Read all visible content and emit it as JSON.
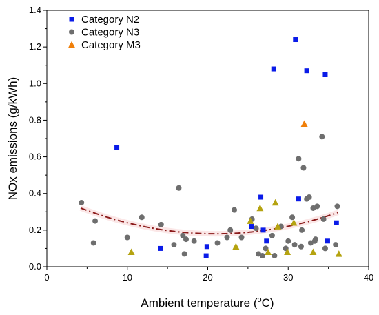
{
  "chart_data": {
    "type": "scatter",
    "xlabel": "Ambient temperature (",
    "xlabel_sup": "o",
    "xlabel_unit": "C)",
    "ylabel": "NOx emissions (g/kWh)",
    "xlim": [
      0,
      40
    ],
    "ylim": [
      0,
      1.4
    ],
    "x_ticks": [
      "0",
      "10",
      "20",
      "30",
      "40"
    ],
    "y_ticks": [
      "0.0",
      "0.2",
      "0.4",
      "0.6",
      "0.8",
      "1.0",
      "1.2",
      "1.4"
    ],
    "grid": false,
    "legend_position": "top-left",
    "series": [
      {
        "name": "Category N2",
        "marker": "square",
        "color": "#0a1be8",
        "points": [
          [
            8.7,
            0.65
          ],
          [
            14.1,
            0.1
          ],
          [
            19.8,
            0.06
          ],
          [
            19.9,
            0.11
          ],
          [
            25.4,
            0.22
          ],
          [
            26.6,
            0.38
          ],
          [
            26.9,
            0.2
          ],
          [
            27.3,
            0.14
          ],
          [
            28.2,
            1.08
          ],
          [
            30.9,
            1.24
          ],
          [
            31.3,
            0.37
          ],
          [
            32.3,
            1.07
          ],
          [
            34.6,
            1.05
          ],
          [
            34.9,
            0.14
          ],
          [
            36.0,
            0.24
          ]
        ]
      },
      {
        "name": "Category N3",
        "marker": "circle",
        "color": "#6e6e6e",
        "points": [
          [
            4.3,
            0.35
          ],
          [
            5.8,
            0.13
          ],
          [
            6.0,
            0.25
          ],
          [
            10.0,
            0.16
          ],
          [
            11.8,
            0.27
          ],
          [
            14.2,
            0.23
          ],
          [
            15.8,
            0.12
          ],
          [
            16.4,
            0.43
          ],
          [
            16.9,
            0.17
          ],
          [
            17.1,
            0.07
          ],
          [
            17.3,
            0.15
          ],
          [
            18.3,
            0.14
          ],
          [
            21.2,
            0.13
          ],
          [
            22.4,
            0.16
          ],
          [
            22.8,
            0.2
          ],
          [
            23.3,
            0.31
          ],
          [
            24.2,
            0.16
          ],
          [
            25.5,
            0.26
          ],
          [
            26.0,
            0.21
          ],
          [
            26.3,
            0.07
          ],
          [
            26.8,
            0.06
          ],
          [
            27.2,
            0.1
          ],
          [
            28.0,
            0.17
          ],
          [
            28.3,
            0.06
          ],
          [
            29.1,
            0.22
          ],
          [
            29.7,
            0.1
          ],
          [
            30.0,
            0.14
          ],
          [
            30.5,
            0.27
          ],
          [
            30.8,
            0.12
          ],
          [
            31.3,
            0.59
          ],
          [
            31.6,
            0.11
          ],
          [
            31.7,
            0.2
          ],
          [
            31.9,
            0.54
          ],
          [
            32.3,
            0.37
          ],
          [
            32.6,
            0.38
          ],
          [
            32.8,
            0.13
          ],
          [
            33.1,
            0.32
          ],
          [
            33.3,
            0.14
          ],
          [
            33.4,
            0.15
          ],
          [
            33.6,
            0.33
          ],
          [
            34.2,
            0.71
          ],
          [
            34.4,
            0.26
          ],
          [
            34.6,
            0.1
          ],
          [
            35.9,
            0.12
          ],
          [
            36.1,
            0.33
          ]
        ]
      },
      {
        "name": "Category M3",
        "marker": "triangle",
        "color": "#f07f09",
        "trend_color": "#b5a310",
        "points": [
          [
            10.5,
            0.08
          ],
          [
            23.5,
            0.11
          ],
          [
            25.3,
            0.25
          ],
          [
            26.5,
            0.32
          ],
          [
            27.5,
            0.08
          ],
          [
            28.4,
            0.35
          ],
          [
            28.7,
            0.22
          ],
          [
            29.9,
            0.08
          ],
          [
            30.7,
            0.24
          ],
          [
            32.0,
            0.78
          ],
          [
            33.1,
            0.08
          ],
          [
            36.3,
            0.07
          ]
        ]
      }
    ],
    "trendline": {
      "style": "dash-dot",
      "color": "#8b1a1a",
      "coefficients": [
        0.4,
        -0.021,
        0.000501
      ]
    }
  }
}
